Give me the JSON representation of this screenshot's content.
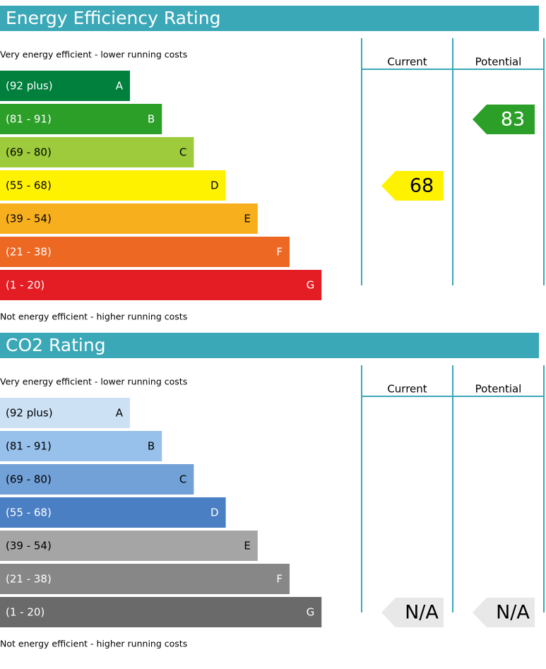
{
  "sections": [
    {
      "title": "Energy Efficiency Rating",
      "top_note": "Very energy efficient - lower running costs",
      "bottom_note": "Not energy efficient - higher running costs",
      "columns": [
        "Current",
        "Potential"
      ],
      "bands": [
        {
          "range": "(92 plus)",
          "letter": "A",
          "color": "#007f3d"
        },
        {
          "range": "(81 - 91)",
          "letter": "B",
          "color": "#2c9f29"
        },
        {
          "range": "(69 - 80)",
          "letter": "C",
          "color": "#9dcb3c"
        },
        {
          "range": "(55 - 68)",
          "letter": "D",
          "color": "#fff200"
        },
        {
          "range": "(39 - 54)",
          "letter": "E",
          "color": "#f7af1d"
        },
        {
          "range": "(21 - 38)",
          "letter": "F",
          "color": "#ed6823"
        },
        {
          "range": "(1 - 20)",
          "letter": "G",
          "color": "#e31d23"
        }
      ],
      "ratings": [
        "68",
        "83"
      ]
    },
    {
      "title": "CO2 Rating",
      "top_note": "Very energy efficient - lower running costs",
      "bottom_note": "Not energy efficient - higher running costs",
      "columns": [
        "Current",
        "Potential"
      ],
      "bands": [
        {
          "range": "(92 plus)",
          "letter": "A",
          "color": "#cce1f4"
        },
        {
          "range": "(81 - 91)",
          "letter": "B",
          "color": "#97c0ea"
        },
        {
          "range": "(69 - 80)",
          "letter": "C",
          "color": "#72a1d8"
        },
        {
          "range": "(55 - 68)",
          "letter": "D",
          "color": "#4a7fc3"
        },
        {
          "range": "(39 - 54)",
          "letter": "E",
          "color": "#a5a5a5"
        },
        {
          "range": "(21 - 38)",
          "letter": "F",
          "color": "#878787"
        },
        {
          "range": "(1 - 20)",
          "letter": "G",
          "color": "#6a6a6a"
        }
      ],
      "ratings": [
        "N/A",
        "N/A"
      ]
    }
  ]
}
